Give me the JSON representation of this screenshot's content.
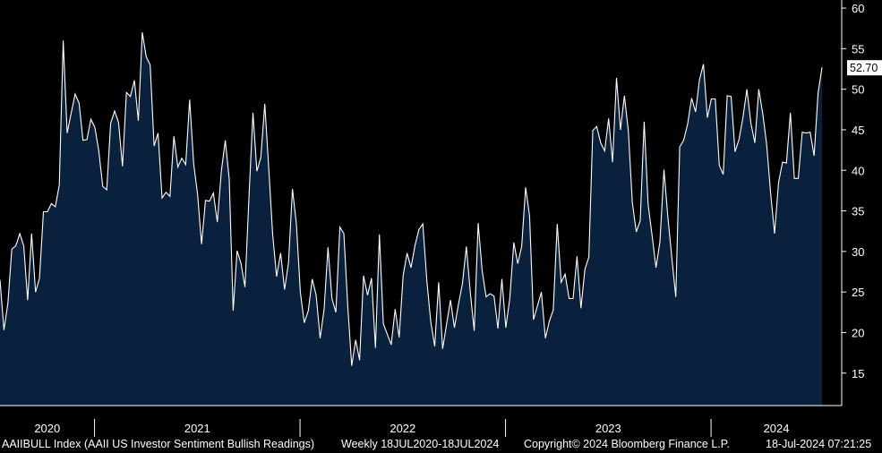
{
  "chart_data": {
    "type": "area",
    "y_axis_side": "right",
    "ylim": [
      11,
      61
    ],
    "y_ticks": [
      15,
      20,
      25,
      30,
      35,
      40,
      45,
      50,
      55,
      60
    ],
    "x_ticks": [
      {
        "label": "2020",
        "x": 2020.5
      },
      {
        "label": "2021",
        "x": 2021.0
      },
      {
        "label": "2022",
        "x": 2022.0
      },
      {
        "label": "2023",
        "x": 2023.0
      },
      {
        "label": "2024",
        "x": 2024.0
      }
    ],
    "x_range": [
      2020.54,
      2024.54
    ],
    "last_value": "52.70",
    "colors": {
      "background": "#000000",
      "fill": "#0a213e",
      "line": "#ffffff",
      "label_bg": "#ffffff",
      "label_text": "#000000"
    },
    "series": [
      {
        "frequency": "weekly",
        "start": "18JUL2020",
        "end": "18JUL2024",
        "values": [
          26.5,
          20.3,
          23.6,
          30.3,
          30.7,
          32.2,
          30.7,
          24.0,
          32.2,
          25.0,
          26.7,
          34.9,
          34.9,
          35.9,
          35.5,
          38.2,
          56.0,
          44.6,
          47.0,
          49.4,
          48.3,
          43.7,
          43.8,
          46.3,
          45.3,
          42.4,
          38.0,
          37.6,
          45.8,
          47.3,
          45.9,
          40.5,
          49.6,
          49.1,
          51.1,
          46.1,
          57.0,
          54.0,
          53.0,
          43.0,
          44.6,
          36.6,
          37.3,
          36.8,
          44.2,
          40.4,
          41.5,
          40.7,
          48.7,
          40.8,
          37.0,
          30.9,
          36.3,
          36.2,
          37.2,
          33.6,
          39.9,
          43.7,
          38.9,
          22.7,
          30.1,
          28.5,
          25.6,
          36.6,
          47.1,
          39.9,
          41.6,
          48.2,
          40.3,
          32.1,
          26.9,
          29.8,
          25.3,
          28.6,
          37.7,
          33.4,
          25.0,
          21.2,
          22.7,
          26.6,
          24.6,
          19.3,
          22.8,
          30.5,
          24.2,
          22.5,
          33.0,
          32.2,
          23.2,
          15.9,
          19.1,
          16.6,
          27.0,
          24.6,
          26.7,
          18.1,
          32.1,
          21.1,
          19.8,
          18.5,
          22.9,
          19.4,
          27.0,
          29.8,
          28.0,
          30.7,
          32.7,
          33.4,
          26.4,
          21.3,
          18.3,
          26.2,
          18.0,
          21.0,
          24.0,
          20.6,
          23.5,
          26.0,
          30.6,
          25.0,
          20.2,
          33.5,
          27.7,
          24.4,
          24.8,
          24.5,
          20.5,
          26.6,
          20.6,
          24.2,
          31.1,
          28.5,
          30.6,
          37.9,
          34.4,
          21.6,
          23.3,
          25.0,
          19.3,
          21.4,
          22.8,
          33.4,
          26.2,
          27.2,
          24.2,
          24.2,
          29.4,
          23.0,
          27.8,
          29.3,
          44.9,
          45.4,
          43.4,
          42.4,
          46.4,
          41.0,
          51.4,
          45.0,
          49.2,
          44.9,
          36.0,
          32.4,
          33.8,
          46.0,
          35.8,
          32.0,
          28.0,
          31.2,
          40.1,
          34.2,
          29.2,
          24.4,
          42.9,
          43.7,
          45.7,
          48.9,
          47.2,
          51.2,
          53.1,
          46.5,
          48.8,
          48.8,
          40.6,
          39.5,
          49.2,
          49.1,
          42.3,
          43.8,
          46.5,
          50.0,
          45.8,
          43.4,
          50.0,
          47.0,
          43.2,
          37.2,
          32.2,
          38.5,
          41.0,
          40.9,
          47.1,
          39.0,
          39.0,
          44.7,
          44.6,
          44.7,
          41.8,
          49.5,
          52.7
        ]
      }
    ]
  },
  "footer": {
    "ticker": "AAIIBULL Index (AAII US Investor Sentiment Bullish Readings)",
    "range": "Weekly 18JUL2020-18JUL2024",
    "copyright": "Copyright© 2024 Bloomberg Finance L.P.",
    "timestamp": "18-Jul-2024 07:21:25"
  }
}
